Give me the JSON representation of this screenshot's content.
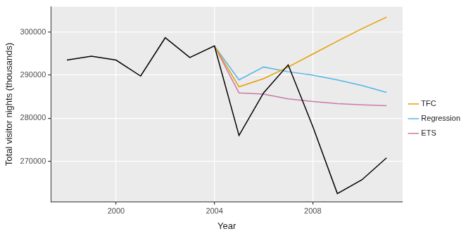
{
  "chart_data": {
    "type": "line",
    "x_label": "Year",
    "y_label": "Total visitor nights (thousands)",
    "x": [
      1998,
      1999,
      2000,
      2001,
      2002,
      2003,
      2004,
      2005,
      2006,
      2007,
      2008,
      2009,
      2010,
      2011
    ],
    "xlim": [
      1997.35,
      2011.65
    ],
    "xticks": [
      2000,
      2004,
      2008
    ],
    "ylim": [
      260600,
      305900
    ],
    "yticks": [
      270000,
      280000,
      290000,
      300000
    ],
    "grid": true,
    "legend": "right",
    "series": [
      {
        "color": "#000000",
        "values": [
          293500,
          294400,
          293500,
          289800,
          298700,
          294100,
          296800,
          276000,
          285900,
          292400,
          278100,
          262500,
          265700,
          270800
        ]
      },
      {
        "name": "TFC",
        "color": "#E69F00",
        "values": [
          null,
          null,
          null,
          null,
          null,
          null,
          296800,
          287300,
          289200,
          291900,
          294900,
          297900,
          300800,
          303500
        ]
      },
      {
        "name": "Regression",
        "color": "#56B4E9",
        "values": [
          null,
          null,
          null,
          null,
          null,
          null,
          296800,
          288900,
          291900,
          290800,
          290000,
          288900,
          287600,
          286000
        ]
      },
      {
        "name": "ETS",
        "color": "#CC79A7",
        "values": [
          null,
          null,
          null,
          null,
          null,
          null,
          296800,
          285900,
          285600,
          284500,
          283900,
          283400,
          283100,
          282900
        ]
      }
    ]
  }
}
